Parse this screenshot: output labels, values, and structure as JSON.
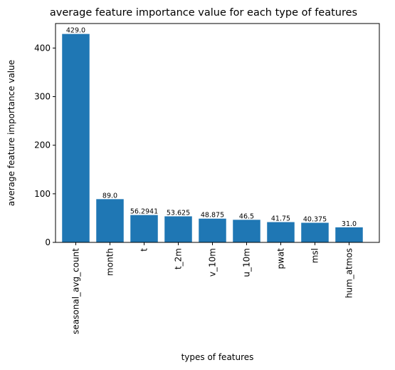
{
  "chart_data": {
    "type": "bar",
    "title": "average feature importance value for each type of features",
    "xlabel": "types of features",
    "ylabel": "average feature importance value",
    "categories": [
      "seasonal_avg_count",
      "month",
      "t",
      "t_2m",
      "v_10m",
      "u_10m",
      "pwat",
      "msl",
      "hum_atmos"
    ],
    "values": [
      429.0,
      89.0,
      56.2941,
      53.625,
      48.875,
      46.5,
      41.75,
      40.375,
      31.0
    ],
    "data_labels": [
      "429.0",
      "89.0",
      "56.2941",
      "53.625",
      "48.875",
      "46.5",
      "41.75",
      "40.375",
      "31.0"
    ],
    "yticks": [
      0,
      100,
      200,
      300,
      400
    ],
    "ylim": [
      0,
      450.45
    ],
    "grid": false,
    "bar_color": "#1f77b4"
  }
}
